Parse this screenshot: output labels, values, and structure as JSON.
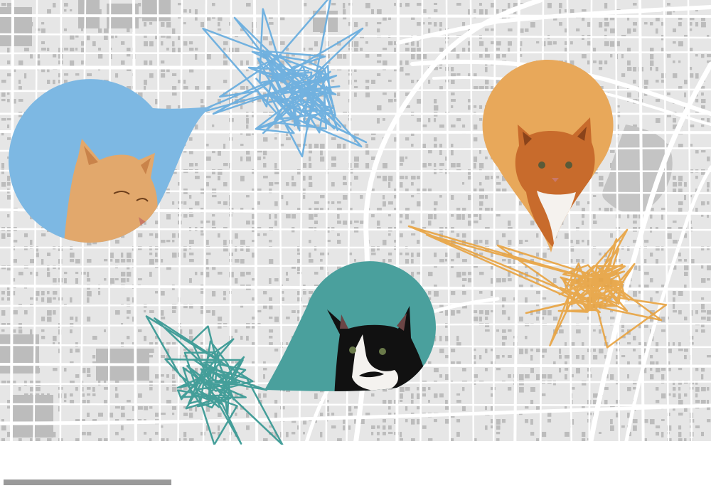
{
  "map": {
    "base_color": "#e6e6e6",
    "road_color": "#ffffff",
    "building_color": "#bcbcbc",
    "water_color": "#c4c4c4"
  },
  "cats": [
    {
      "name": "",
      "color": "#7db8e3",
      "track_color": "#6aaede",
      "fur": "#e2a86c",
      "fur_dark": "#c9834a",
      "icon": "orange-tabby-cat-icon"
    },
    {
      "name": "",
      "color": "#e8a85a",
      "track_color": "#e8a23e",
      "fur": "#c86b2c",
      "fur_dark": "#8a431a",
      "icon": "ginger-white-cat-icon"
    },
    {
      "name": "",
      "color": "#4aa09d",
      "track_color": "#3b9a95",
      "fur": "#111111",
      "fur_dark": "#000000",
      "icon": "tuxedo-cat-icon"
    }
  ],
  "scale_bar": {
    "color": "#9a9a9a"
  }
}
